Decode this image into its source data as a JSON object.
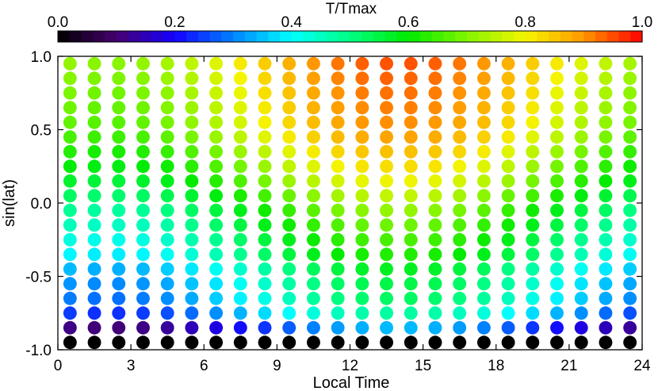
{
  "chart_data": {
    "type": "heatmap",
    "title": "",
    "xlabel": "Local Time",
    "ylabel": "sin(lat)",
    "xlim": [
      0,
      24
    ],
    "ylim": [
      -1.0,
      1.0
    ],
    "x_ticks": [
      0,
      3,
      6,
      9,
      12,
      15,
      18,
      21,
      24
    ],
    "x_tick_labels": [
      "0",
      "3",
      "6",
      "9",
      "12",
      "15",
      "18",
      "21",
      "24"
    ],
    "y_ticks": [
      -1.0,
      -0.5,
      0.0,
      0.5,
      1.0
    ],
    "y_tick_labels": [
      "-1.0",
      "-0.5",
      "0.0",
      "0.5",
      "1.0"
    ],
    "colorbar": {
      "label": "T/Tmax",
      "range": [
        0.0,
        1.0
      ],
      "ticks": [
        0.0,
        0.2,
        0.4,
        0.6,
        0.8,
        1.0
      ],
      "tick_labels": [
        "0.0",
        "0.2",
        "0.4",
        "0.6",
        "0.8",
        "1.0"
      ],
      "colormap": "rainbow (black-purple-blue-cyan-green-yellow-orange-red)"
    },
    "marker": "circle",
    "x": [
      0.5,
      1.5,
      2.5,
      3.5,
      4.5,
      5.5,
      6.5,
      7.5,
      8.5,
      9.5,
      10.5,
      11.5,
      12.5,
      13.5,
      14.5,
      15.5,
      16.5,
      17.5,
      18.5,
      19.5,
      20.5,
      21.5,
      22.5,
      23.5
    ],
    "y": [
      0.95,
      0.85,
      0.75,
      0.65,
      0.55,
      0.45,
      0.35,
      0.25,
      0.15,
      0.05,
      -0.05,
      -0.15,
      -0.25,
      -0.35,
      -0.45,
      -0.55,
      -0.65,
      -0.75,
      -0.85,
      -0.95
    ],
    "row_levels": [
      0.85,
      0.84,
      0.83,
      0.82,
      0.81,
      0.79,
      0.76,
      0.73,
      0.7,
      0.66,
      0.62,
      0.59,
      0.56,
      0.53,
      0.48,
      0.45,
      0.43,
      0.38,
      0.25,
      0.0
    ],
    "diurnal_amplitude": 0.12,
    "peak_local_time": 14
  }
}
